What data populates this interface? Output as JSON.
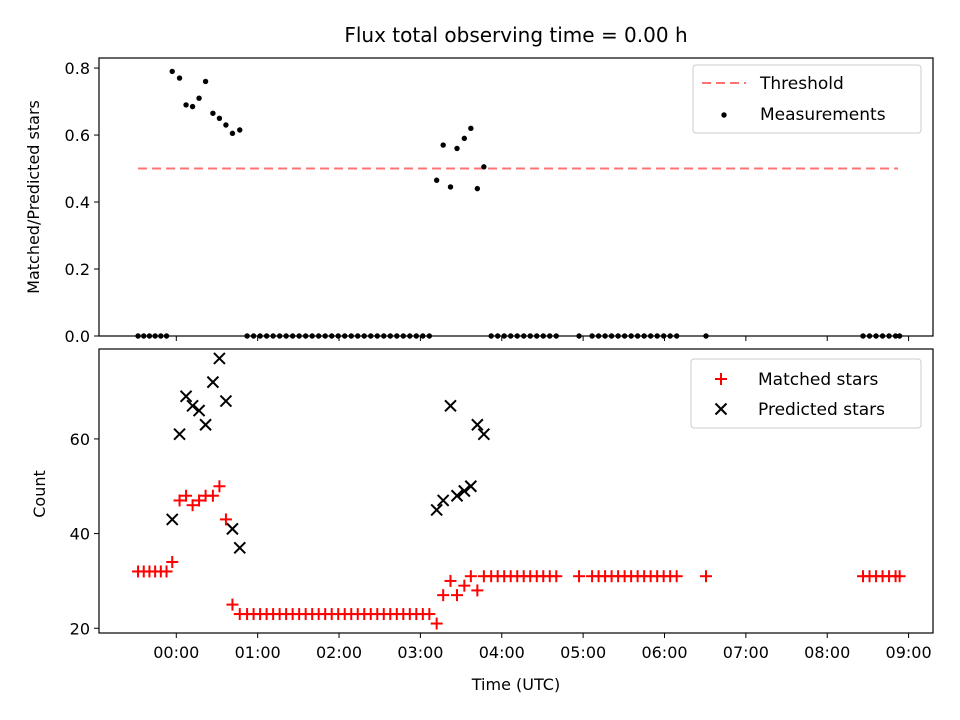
{
  "title": "Flux total observing time = 0.00 h",
  "xlabel": "Time (UTC)",
  "x_ticks": [
    "00:00",
    "01:00",
    "02:00",
    "03:00",
    "04:00",
    "05:00",
    "06:00",
    "07:00",
    "08:00",
    "09:00"
  ],
  "colors": {
    "threshold": "#ff7373",
    "measurements": "#000000",
    "matched": "#ff0000",
    "predicted": "#000000"
  },
  "chart_data": [
    {
      "type": "scatter",
      "ylabel": "Matched/Predicted stars",
      "xlim": [
        -0.95,
        9.3
      ],
      "ylim": [
        0,
        0.83
      ],
      "y_ticks": [
        0.0,
        0.2,
        0.4,
        0.6,
        0.8
      ],
      "legend_placement": "top-right",
      "threshold": {
        "name": "Threshold",
        "x": [
          -0.47,
          8.87
        ],
        "y": 0.5
      },
      "series": [
        {
          "name": "Measurements",
          "points": [
            [
              -0.47,
              0
            ],
            [
              -0.4,
              0
            ],
            [
              -0.33,
              0
            ],
            [
              -0.26,
              0
            ],
            [
              -0.19,
              0
            ],
            [
              -0.12,
              0
            ],
            [
              -0.05,
              0.79
            ],
            [
              0.04,
              0.77
            ],
            [
              0.12,
              0.69
            ],
            [
              0.2,
              0.685
            ],
            [
              0.28,
              0.71
            ],
            [
              0.36,
              0.76
            ],
            [
              0.45,
              0.665
            ],
            [
              0.53,
              0.65
            ],
            [
              0.61,
              0.63
            ],
            [
              0.69,
              0.605
            ],
            [
              0.78,
              0.615
            ],
            [
              0.87,
              0
            ],
            [
              0.95,
              0
            ],
            [
              1.03,
              0
            ],
            [
              1.11,
              0
            ],
            [
              1.19,
              0
            ],
            [
              1.27,
              0
            ],
            [
              1.35,
              0
            ],
            [
              1.43,
              0
            ],
            [
              1.51,
              0
            ],
            [
              1.59,
              0
            ],
            [
              1.67,
              0
            ],
            [
              1.75,
              0
            ],
            [
              1.83,
              0
            ],
            [
              1.91,
              0
            ],
            [
              1.99,
              0
            ],
            [
              2.07,
              0
            ],
            [
              2.15,
              0
            ],
            [
              2.23,
              0
            ],
            [
              2.31,
              0
            ],
            [
              2.39,
              0
            ],
            [
              2.47,
              0
            ],
            [
              2.55,
              0
            ],
            [
              2.63,
              0
            ],
            [
              2.71,
              0
            ],
            [
              2.79,
              0
            ],
            [
              2.87,
              0
            ],
            [
              2.95,
              0
            ],
            [
              3.03,
              0
            ],
            [
              3.11,
              0
            ],
            [
              3.2,
              0.465
            ],
            [
              3.28,
              0.57
            ],
            [
              3.37,
              0.445
            ],
            [
              3.45,
              0.56
            ],
            [
              3.54,
              0.59
            ],
            [
              3.62,
              0.62
            ],
            [
              3.7,
              0.44
            ],
            [
              3.78,
              0.505
            ],
            [
              3.87,
              0
            ],
            [
              3.95,
              0
            ],
            [
              4.03,
              0
            ],
            [
              4.11,
              0
            ],
            [
              4.19,
              0
            ],
            [
              4.27,
              0
            ],
            [
              4.35,
              0
            ],
            [
              4.43,
              0
            ],
            [
              4.51,
              0
            ],
            [
              4.59,
              0
            ],
            [
              4.67,
              0
            ],
            [
              4.95,
              0
            ],
            [
              5.11,
              0
            ],
            [
              5.19,
              0
            ],
            [
              5.27,
              0
            ],
            [
              5.35,
              0
            ],
            [
              5.43,
              0
            ],
            [
              5.51,
              0
            ],
            [
              5.59,
              0
            ],
            [
              5.67,
              0
            ],
            [
              5.75,
              0
            ],
            [
              5.83,
              0
            ],
            [
              5.91,
              0
            ],
            [
              5.99,
              0
            ],
            [
              6.07,
              0
            ],
            [
              6.15,
              0
            ],
            [
              6.51,
              0
            ],
            [
              8.44,
              0
            ],
            [
              8.52,
              0
            ],
            [
              8.6,
              0
            ],
            [
              8.68,
              0
            ],
            [
              8.76,
              0
            ],
            [
              8.84,
              0
            ],
            [
              8.89,
              0
            ]
          ]
        }
      ]
    },
    {
      "type": "scatter",
      "ylabel": "Count",
      "xlim": [
        -0.95,
        9.3
      ],
      "ylim": [
        19,
        79
      ],
      "y_ticks": [
        20,
        40,
        60
      ],
      "legend_placement": "top-right",
      "series": [
        {
          "name": "Matched stars",
          "marker": "plus",
          "points": [
            [
              -0.47,
              32
            ],
            [
              -0.4,
              32
            ],
            [
              -0.33,
              32
            ],
            [
              -0.26,
              32
            ],
            [
              -0.19,
              32
            ],
            [
              -0.12,
              32
            ],
            [
              -0.05,
              34
            ],
            [
              0.04,
              47
            ],
            [
              0.12,
              48
            ],
            [
              0.2,
              46
            ],
            [
              0.28,
              47
            ],
            [
              0.36,
              48
            ],
            [
              0.45,
              48
            ],
            [
              0.53,
              50
            ],
            [
              0.61,
              43
            ],
            [
              0.69,
              25
            ],
            [
              0.78,
              23
            ],
            [
              0.87,
              23
            ],
            [
              0.95,
              23
            ],
            [
              1.03,
              23
            ],
            [
              1.11,
              23
            ],
            [
              1.19,
              23
            ],
            [
              1.27,
              23
            ],
            [
              1.35,
              23
            ],
            [
              1.43,
              23
            ],
            [
              1.51,
              23
            ],
            [
              1.59,
              23
            ],
            [
              1.67,
              23
            ],
            [
              1.75,
              23
            ],
            [
              1.83,
              23
            ],
            [
              1.91,
              23
            ],
            [
              1.99,
              23
            ],
            [
              2.07,
              23
            ],
            [
              2.15,
              23
            ],
            [
              2.23,
              23
            ],
            [
              2.31,
              23
            ],
            [
              2.39,
              23
            ],
            [
              2.47,
              23
            ],
            [
              2.55,
              23
            ],
            [
              2.63,
              23
            ],
            [
              2.71,
              23
            ],
            [
              2.79,
              23
            ],
            [
              2.87,
              23
            ],
            [
              2.95,
              23
            ],
            [
              3.03,
              23
            ],
            [
              3.11,
              23
            ],
            [
              3.2,
              21
            ],
            [
              3.28,
              27
            ],
            [
              3.37,
              30
            ],
            [
              3.45,
              27
            ],
            [
              3.54,
              29
            ],
            [
              3.62,
              31
            ],
            [
              3.7,
              28
            ],
            [
              3.78,
              31
            ],
            [
              3.87,
              31
            ],
            [
              3.95,
              31
            ],
            [
              4.03,
              31
            ],
            [
              4.11,
              31
            ],
            [
              4.19,
              31
            ],
            [
              4.27,
              31
            ],
            [
              4.35,
              31
            ],
            [
              4.43,
              31
            ],
            [
              4.51,
              31
            ],
            [
              4.59,
              31
            ],
            [
              4.67,
              31
            ],
            [
              4.95,
              31
            ],
            [
              5.11,
              31
            ],
            [
              5.19,
              31
            ],
            [
              5.27,
              31
            ],
            [
              5.35,
              31
            ],
            [
              5.43,
              31
            ],
            [
              5.51,
              31
            ],
            [
              5.59,
              31
            ],
            [
              5.67,
              31
            ],
            [
              5.75,
              31
            ],
            [
              5.83,
              31
            ],
            [
              5.91,
              31
            ],
            [
              5.99,
              31
            ],
            [
              6.07,
              31
            ],
            [
              6.15,
              31
            ],
            [
              6.51,
              31
            ],
            [
              8.44,
              31
            ],
            [
              8.52,
              31
            ],
            [
              8.6,
              31
            ],
            [
              8.68,
              31
            ],
            [
              8.76,
              31
            ],
            [
              8.84,
              31
            ],
            [
              8.89,
              31
            ]
          ]
        },
        {
          "name": "Predicted stars",
          "marker": "x",
          "points": [
            [
              -0.05,
              43
            ],
            [
              0.04,
              61
            ],
            [
              0.12,
              69
            ],
            [
              0.2,
              67
            ],
            [
              0.28,
              66
            ],
            [
              0.36,
              63
            ],
            [
              0.45,
              72
            ],
            [
              0.53,
              77
            ],
            [
              0.61,
              68
            ],
            [
              0.69,
              41
            ],
            [
              0.78,
              37
            ],
            [
              3.2,
              45
            ],
            [
              3.28,
              47
            ],
            [
              3.37,
              67
            ],
            [
              3.45,
              48
            ],
            [
              3.54,
              49
            ],
            [
              3.62,
              50
            ],
            [
              3.7,
              63
            ],
            [
              3.78,
              61
            ]
          ]
        }
      ]
    }
  ]
}
